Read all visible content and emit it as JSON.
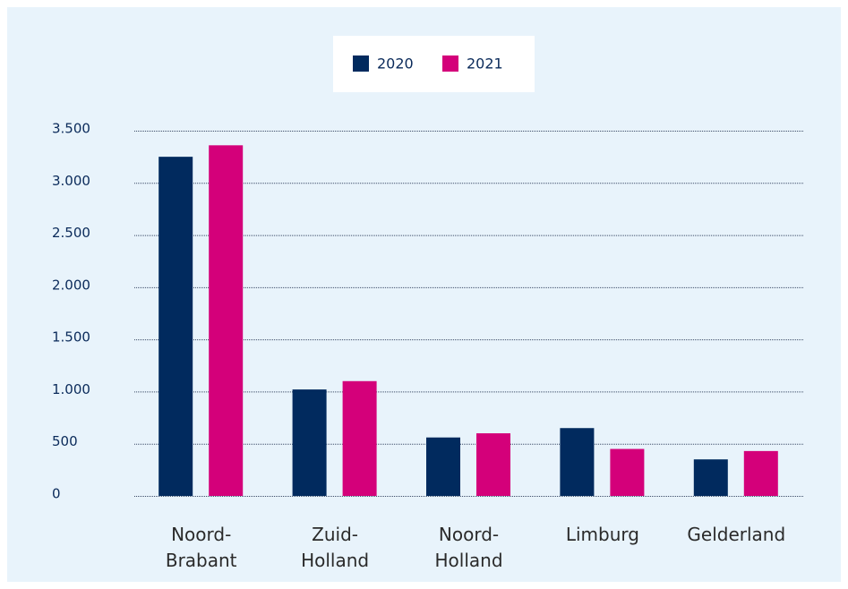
{
  "chart_data": {
    "type": "bar",
    "categories": [
      "Noord-Brabant",
      "Zuid-Holland",
      "Noord-Holland",
      "Limburg",
      "Gelderland"
    ],
    "series": [
      {
        "name": "2020",
        "color": "#012a5e",
        "values": [
          3250,
          1020,
          560,
          650,
          350
        ]
      },
      {
        "name": "2021",
        "color": "#d4007a",
        "values": [
          3360,
          1100,
          600,
          450,
          430
        ]
      }
    ],
    "ylim": [
      0,
      3500
    ],
    "yticks": [
      0,
      500,
      {
        "value": 1000,
        "label": "1.000"
      },
      {
        "value": 1500,
        "label": "1.500"
      },
      {
        "value": 2000,
        "label": "2.000"
      },
      {
        "value": 2500,
        "label": "2.500"
      },
      {
        "value": 3000,
        "label": "3.000"
      },
      {
        "value": 3500,
        "label": "3.500"
      }
    ],
    "grid": true
  }
}
